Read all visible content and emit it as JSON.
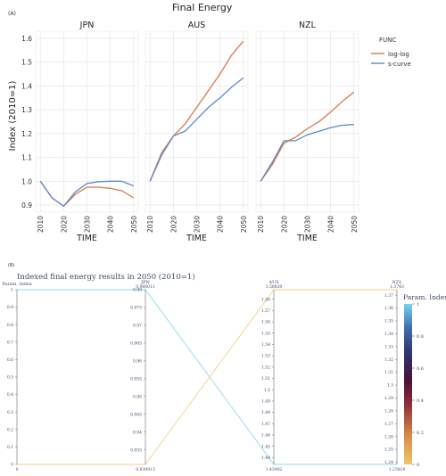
{
  "panel_a": {
    "label": "(A)",
    "title": "Final Energy",
    "ylabel": "Index (2010=1)",
    "xlabel": "TIME",
    "y_ticks": [
      "0.9",
      "1.0",
      "1.1",
      "1.2",
      "1.3",
      "1.4",
      "1.5",
      "1.6"
    ],
    "x_ticks": [
      "2010",
      "2020",
      "2030",
      "2040",
      "2050"
    ],
    "legend_title": "FUNC",
    "colors": {
      "log-log": "#d6784a",
      "s-curve": "#5b8ac9",
      "grid": "#e3e3e3"
    }
  },
  "panel_b": {
    "label": "(B)",
    "title": "Indexed final energy results in 2050 (2010=1)",
    "colorbar_title": "Param. Index",
    "colorbar_ticks": [
      "1",
      "0.8",
      "0.6",
      "0.4",
      "0.2",
      "0"
    ],
    "axes": [
      {
        "name": "Param. Index",
        "top": "",
        "bottom": "0",
        "ticks": [
          "1",
          "0.9",
          "0.8",
          "0.7",
          "0.6",
          "0.5",
          "0.4",
          "0.3",
          "0.2",
          "0.1",
          "0"
        ]
      },
      {
        "name": "JPN",
        "top": "0.980011",
        "bottom": "0.930913",
        "ticks": [
          "0.98",
          "0.975",
          "0.97",
          "0.965",
          "0.96",
          "0.955",
          "0.95",
          "0.945",
          "0.94",
          "0.935"
        ]
      },
      {
        "name": "AUS",
        "top": "1.58839",
        "bottom": "1.43402",
        "ticks": [
          "1.58",
          "1.57",
          "1.56",
          "1.55",
          "1.54",
          "1.53",
          "1.52",
          "1.51",
          "1.5",
          "1.49",
          "1.48",
          "1.47",
          "1.46",
          "1.45",
          "1.44"
        ]
      },
      {
        "name": "NZL",
        "top": "1.3743",
        "bottom": "1.23824",
        "ticks": [
          "1.37",
          "1.36",
          "1.35",
          "1.34",
          "1.33",
          "1.32",
          "1.31",
          "1.3",
          "1.29",
          "1.28",
          "1.27",
          "1.26",
          "1.25",
          "1.24"
        ]
      }
    ]
  },
  "chart_data": [
    {
      "type": "line",
      "title": "Final Energy",
      "xlabel": "TIME",
      "ylabel": "Index (2010=1)",
      "ylim": [
        0.87,
        1.63
      ],
      "xlim": [
        2008,
        2052
      ],
      "grid": true,
      "legend_position": "right",
      "legend_title": "FUNC",
      "x": [
        2010,
        2015,
        2020,
        2025,
        2030,
        2035,
        2040,
        2045,
        2050
      ],
      "facets": [
        {
          "name": "JPN",
          "series": [
            {
              "name": "log-log",
              "values": [
                1.0,
                0.93,
                0.895,
                0.945,
                0.975,
                0.975,
                0.97,
                0.96,
                0.93
              ]
            },
            {
              "name": "s-curve",
              "values": [
                1.0,
                0.93,
                0.895,
                0.955,
                0.99,
                0.998,
                1.0,
                1.0,
                0.98
              ]
            }
          ]
        },
        {
          "name": "AUS",
          "series": [
            {
              "name": "log-log",
              "values": [
                1.0,
                1.12,
                1.19,
                1.24,
                1.31,
                1.38,
                1.45,
                1.53,
                1.588
              ]
            },
            {
              "name": "s-curve",
              "values": [
                1.0,
                1.11,
                1.19,
                1.21,
                1.26,
                1.31,
                1.35,
                1.395,
                1.434
              ]
            }
          ]
        },
        {
          "name": "NZL",
          "series": [
            {
              "name": "log-log",
              "values": [
                1.0,
                1.07,
                1.16,
                1.185,
                1.22,
                1.25,
                1.29,
                1.335,
                1.374
              ]
            },
            {
              "name": "s-curve",
              "values": [
                1.0,
                1.08,
                1.17,
                1.17,
                1.195,
                1.21,
                1.225,
                1.235,
                1.238
              ]
            }
          ]
        }
      ]
    },
    {
      "type": "parallel-coordinates",
      "title": "Indexed final energy results in 2050 (2010=1)",
      "dimensions": [
        {
          "name": "Param. Index",
          "range": [
            0,
            1
          ]
        },
        {
          "name": "JPN",
          "range": [
            0.930913,
            0.980011
          ]
        },
        {
          "name": "AUS",
          "range": [
            1.43402,
            1.58839
          ]
        },
        {
          "name": "NZL",
          "range": [
            1.23824,
            1.3743
          ]
        }
      ],
      "lines": [
        {
          "values": [
            1,
            0.980011,
            1.43402,
            1.23824
          ]
        },
        {
          "values": [
            0,
            0.930913,
            1.58839,
            1.3743
          ]
        }
      ],
      "colorscale": {
        "title": "Param. Index",
        "range": [
          0,
          1
        ],
        "low": "#f3c66b",
        "mid": "#4b1235",
        "high": "#78d3ef"
      }
    }
  ]
}
